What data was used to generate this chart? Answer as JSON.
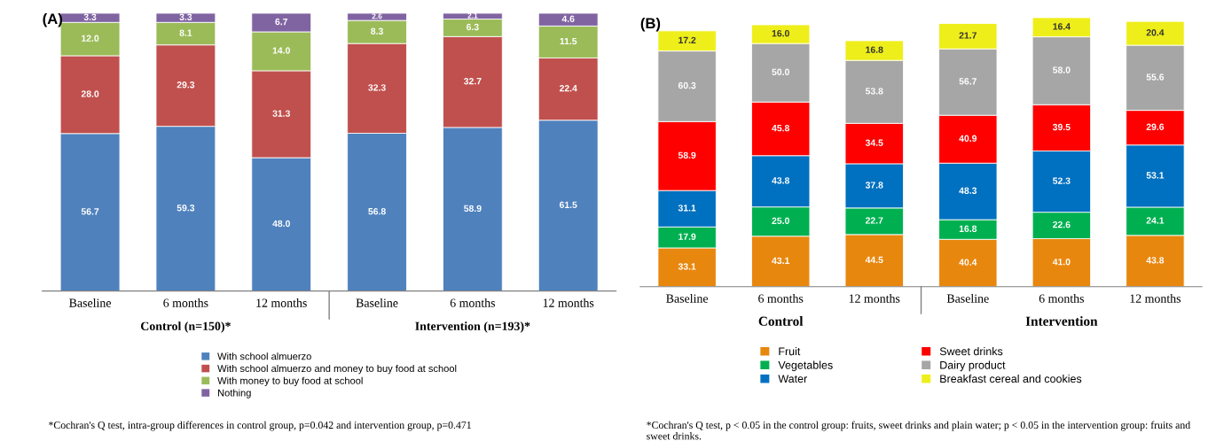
{
  "chart_data": [
    {
      "type": "bar",
      "stacked": true,
      "title": "(A)",
      "categories": [
        "Baseline",
        "6 months",
        "12 months",
        "Baseline",
        "6 months",
        "12 months"
      ],
      "legend": "bottom",
      "grid": false,
      "tick_labels": "x",
      "series": [
        {
          "name": "With school almuerzo",
          "color": "#4f81bd",
          "values": [
            56.7,
            59.3,
            48.0,
            56.8,
            58.9,
            61.5
          ],
          "value_labels": [
            "56.7",
            "59.3",
            "48.0",
            "56.8",
            "58.9",
            "61.5"
          ]
        },
        {
          "name": "With school almuerzo and money to buy food at school",
          "color": "#c0504d",
          "values": [
            28.0,
            29.3,
            31.3,
            32.3,
            32.7,
            22.4
          ],
          "value_labels": [
            "28.0",
            "29.3",
            "31.3",
            "32.3",
            "32.7",
            "22.4"
          ]
        },
        {
          "name": "With money to buy food at school",
          "color": "#9bbb59",
          "values": [
            12.0,
            8.1,
            14.0,
            8.3,
            6.3,
            11.5
          ],
          "value_labels": [
            "12.0",
            "8.1",
            "14.0",
            "8.3",
            "6.3",
            "11.5"
          ]
        },
        {
          "name": "Nothing",
          "color": "#8064a2",
          "values": [
            3.3,
            3.3,
            6.7,
            2.6,
            2.1,
            4.6
          ],
          "value_labels": [
            "3.3",
            "3.3",
            "6.7",
            "2.6",
            "2.1",
            "4.6"
          ]
        }
      ],
      "annotations": [
        "Control (n=150)*",
        "Intervention (n=193)*",
        "*Cochran's Q test, intra-group differences in control group, p=0.042 and intervention group, p=0.471"
      ]
    },
    {
      "type": "bar",
      "stacked": true,
      "title": "(B)",
      "categories": [
        "Baseline",
        "6 months",
        "12 months",
        "Baseline",
        "6 months",
        "12 months"
      ],
      "legend": "bottom",
      "grid": false,
      "tick_labels": "x",
      "series": [
        {
          "name": "Fruit",
          "color": "#e8870e",
          "values": [
            33.1,
            43.1,
            44.5,
            40.4,
            41.0,
            43.8
          ],
          "value_labels": [
            "33.1",
            "43.1",
            "44.5",
            "40.4",
            "41.0",
            "43.8"
          ]
        },
        {
          "name": "Vegetables",
          "color": "#00b050",
          "values": [
            17.9,
            25.0,
            22.7,
            16.8,
            22.6,
            24.1
          ],
          "value_labels": [
            "17.9",
            "25.0",
            "22.7",
            "16.8",
            "22.6",
            "24.1"
          ]
        },
        {
          "name": "Water",
          "color": "#0070c0",
          "values": [
            31.1,
            43.8,
            37.8,
            48.3,
            52.3,
            53.1
          ],
          "value_labels": [
            "31.1",
            "43.8",
            "37.8",
            "48.3",
            "52.3",
            "53.1"
          ]
        },
        {
          "name": "Sweet drinks",
          "color": "#ff0000",
          "values": [
            58.9,
            45.8,
            34.5,
            40.9,
            39.5,
            29.6
          ],
          "value_labels": [
            "58.9",
            "45.8",
            "34.5",
            "40.9",
            "39.5",
            "29.6"
          ]
        },
        {
          "name": "Dairy product",
          "color": "#a6a6a6",
          "values": [
            60.3,
            50.0,
            53.8,
            56.7,
            58.0,
            55.6
          ],
          "value_labels": [
            "60.3",
            "50.0",
            "53.8",
            "56.7",
            "58.0",
            "55.6"
          ]
        },
        {
          "name": "Breakfast cereal and cookies",
          "color": "#eeee1a",
          "values": [
            17.2,
            16.0,
            16.8,
            21.7,
            16.4,
            20.4
          ],
          "value_labels": [
            "17.2",
            "16.0",
            "16.8",
            "21.7",
            "16.4",
            "20.4"
          ]
        }
      ],
      "annotations": [
        "Control",
        "Intervention",
        "*Cochran's Q test, p < 0.05 in the control group: fruits, sweet drinks and plain water; p < 0.05 in the intervention group: fruits and sweet drinks."
      ]
    }
  ]
}
